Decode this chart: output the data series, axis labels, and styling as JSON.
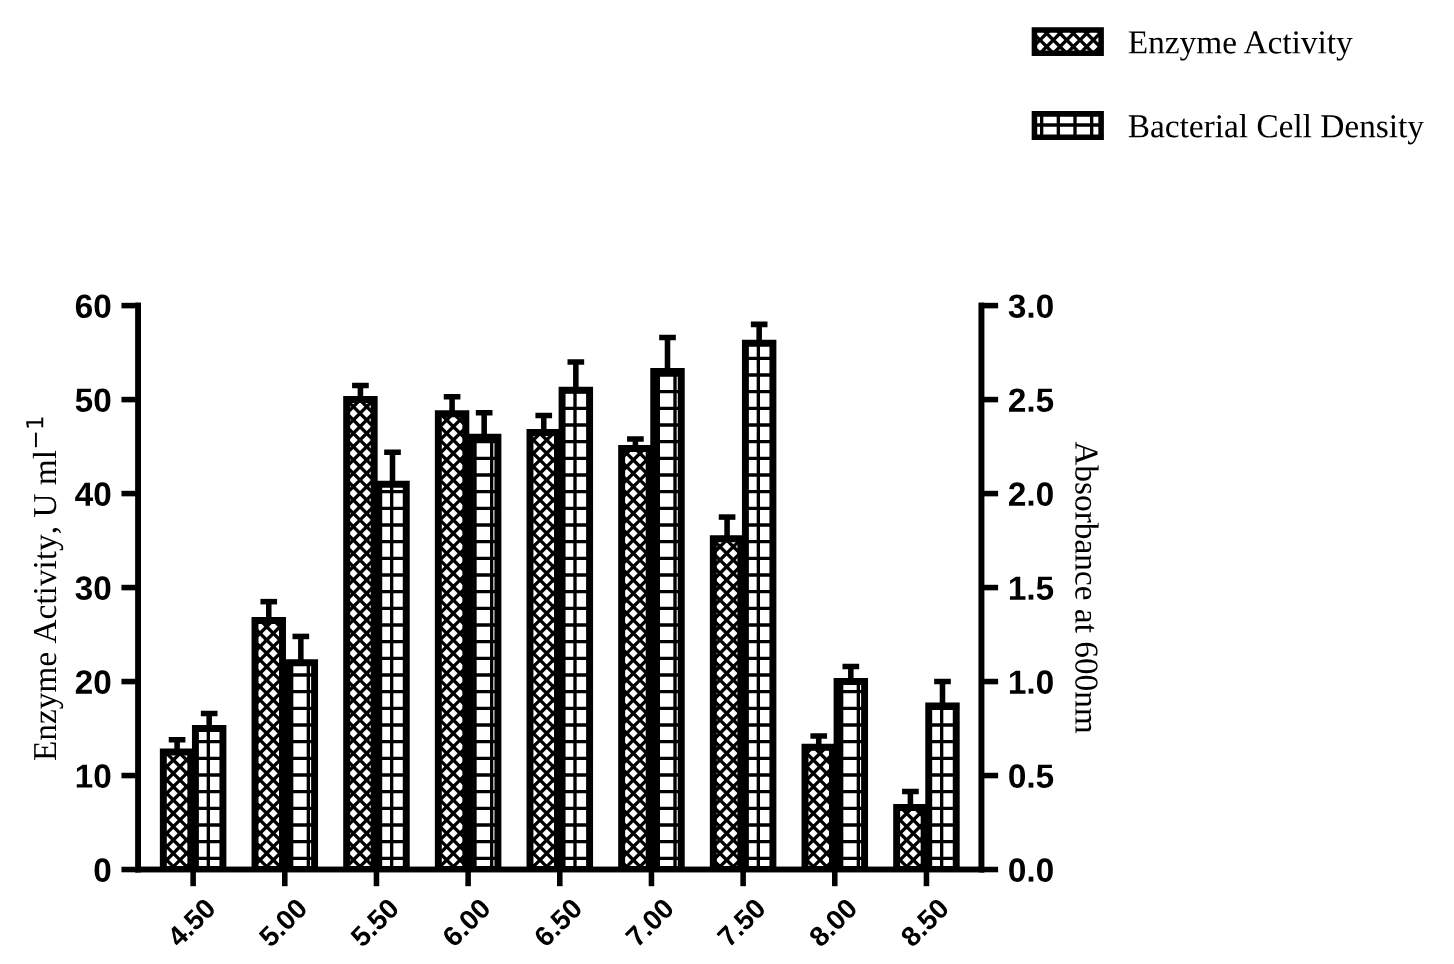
{
  "chart_data": {
    "type": "bar",
    "categories": [
      "4.50",
      "5.00",
      "5.50",
      "6.00",
      "6.50",
      "7.00",
      "7.50",
      "8.00",
      "8.50"
    ],
    "ylabel": "Enzyme Activity, U ml$^{−1}$",
    "y2label": "Absorbance at 600nm",
    "ylim": [
      0,
      60
    ],
    "yticks": [
      0,
      10,
      20,
      30,
      40,
      50,
      60
    ],
    "y2lim": [
      0,
      3.0
    ],
    "y2ticks": [
      {
        "value": 0,
        "label": "0.0"
      },
      0.5,
      {
        "value": 1,
        "label": "1.0"
      },
      1.5,
      {
        "value": 2,
        "label": "2.0"
      },
      2.5,
      {
        "value": 3,
        "label": "3.0"
      }
    ],
    "legend": "top right",
    "grid": false,
    "series": [
      {
        "name": "Enzyme Activity",
        "color": "#000000",
        "values": [
          12.5,
          26.5,
          50,
          48.5,
          46.5,
          44.8,
          35.2,
          13,
          6.6
        ],
        "errors": [
          [
            12.5,
            13.8
          ],
          [
            26.5,
            28.5
          ],
          [
            50,
            51.5
          ],
          [
            48.5,
            50.3
          ],
          [
            46.5,
            48.3
          ],
          [
            44.8,
            45.8
          ],
          [
            35.2,
            37.5
          ],
          [
            13,
            14.2
          ],
          [
            6.6,
            8.3
          ]
        ]
      },
      {
        "name": "Bacterial Cell Density",
        "color": "#000000",
        "axis": "y2",
        "values": [
          0.75,
          1.1,
          2.05,
          2.3,
          2.55,
          2.65,
          2.8,
          1.0,
          0.87
        ],
        "errors": [
          [
            0.75,
            0.83
          ],
          [
            1.1,
            1.24
          ],
          [
            2.05,
            2.22
          ],
          [
            2.3,
            2.43
          ],
          [
            2.55,
            2.7
          ],
          [
            2.65,
            2.83
          ],
          [
            2.8,
            2.9
          ],
          [
            1.0,
            1.08
          ],
          [
            0.87,
            1.0
          ]
        ]
      }
    ]
  }
}
